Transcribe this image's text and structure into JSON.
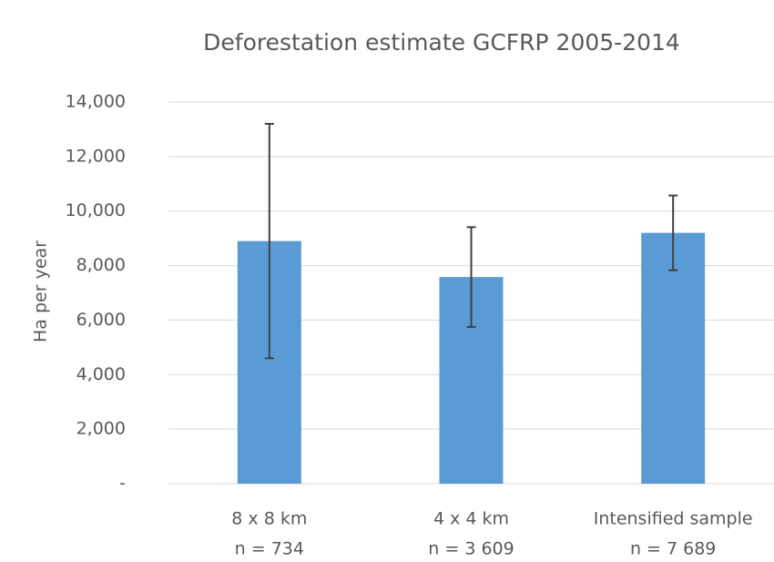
{
  "chart_data": {
    "type": "bar",
    "title": "Deforestation estimate GCFRP 2005-2014",
    "y_label": "Ha per year",
    "categories": [
      [
        "8 x 8 km",
        "n = 734"
      ],
      [
        "4 x 4 km",
        "n = 3 609"
      ],
      [
        "Intensified sample",
        "n = 7 689"
      ]
    ],
    "values": [
      8900,
      7580,
      9200
    ],
    "errors": [
      4300,
      1830,
      1370
    ],
    "color": "#5b9bd5",
    "error_color": "#404040",
    "ylim": [
      0,
      14000
    ],
    "yticks": [
      {
        "value": 0,
        "label": "-"
      },
      {
        "value": 2000,
        "label": "2,000"
      },
      {
        "value": 4000,
        "label": "4,000"
      },
      {
        "value": 6000,
        "label": "6,000"
      },
      {
        "value": 8000,
        "label": "8,000"
      },
      {
        "value": 10000,
        "label": "10,000"
      },
      {
        "value": 12000,
        "label": "12,000"
      },
      {
        "value": 14000,
        "label": "14,000"
      }
    ],
    "grid": true
  }
}
